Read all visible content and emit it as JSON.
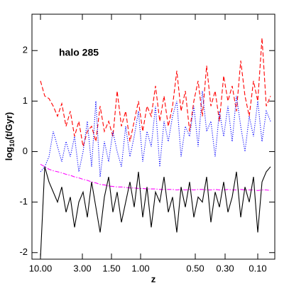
{
  "chart_data": {
    "type": "line",
    "annotation": "halo 285",
    "xlabel": "z",
    "ylabel": {
      "base": "log",
      "sub": "10",
      "rest": "(t/Gyr)"
    },
    "x": [
      6,
      9,
      12,
      15,
      18,
      21,
      24,
      27,
      30,
      33,
      36,
      39,
      42,
      45,
      48,
      51,
      54,
      57,
      60,
      63,
      66,
      69,
      72,
      75,
      78,
      81,
      84,
      87,
      90,
      93,
      96,
      99,
      102,
      105,
      108,
      111,
      114,
      117,
      120,
      123,
      126,
      129,
      132,
      135,
      138,
      141,
      144,
      147,
      150,
      153,
      156,
      159,
      162,
      165,
      168
    ],
    "series": [
      {
        "color": "#ff0000",
        "linestyle": "dashed",
        "values": [
          1.4,
          1.1,
          1.05,
          0.9,
          0.7,
          0.95,
          0.5,
          0.8,
          0.3,
          0.6,
          0.1,
          0.4,
          0.5,
          0.2,
          0.9,
          0.4,
          0.6,
          0.3,
          1.2,
          0.5,
          0.8,
          0.2,
          0.6,
          1.0,
          0.4,
          0.9,
          0.7,
          1.3,
          0.6,
          1.1,
          0.5,
          0.9,
          1.6,
          0.8,
          1.2,
          0.4,
          1.0,
          1.4,
          0.7,
          1.7,
          0.9,
          1.2,
          0.6,
          1.5,
          1.0,
          1.3,
          0.8,
          1.8,
          1.1,
          0.7,
          1.4,
          1.0,
          2.25,
          0.9,
          1.1
        ]
      },
      {
        "color": "#0000ff",
        "linestyle": "dotted",
        "values": [
          -0.4,
          -0.3,
          -0.1,
          0.4,
          0.1,
          -0.2,
          0.2,
          -0.1,
          0.3,
          -0.4,
          0.0,
          0.6,
          -0.3,
          1.0,
          -0.5,
          0.2,
          -0.2,
          0.4,
          0.0,
          -0.3,
          0.5,
          -0.1,
          0.3,
          0.8,
          -0.2,
          0.4,
          0.1,
          0.9,
          -0.3,
          0.6,
          0.2,
          0.7,
          1.0,
          -0.1,
          0.5,
          0.3,
          0.9,
          0.1,
          1.2,
          0.4,
          0.6,
          -0.1,
          0.8,
          0.3,
          0.9,
          0.2,
          1.1,
          0.5,
          0.0,
          0.7,
          0.3,
          1.0,
          0.2,
          0.8,
          0.6
        ]
      },
      {
        "color": "#ff00ff",
        "linestyle": "dashdot",
        "values": [
          -0.25,
          -0.3,
          -0.35,
          -0.38,
          -0.4,
          -0.42,
          -0.45,
          -0.47,
          -0.5,
          -0.52,
          -0.55,
          -0.57,
          -0.6,
          -0.62,
          -0.65,
          -0.66,
          -0.68,
          -0.69,
          -0.7,
          -0.7,
          -0.71,
          -0.72,
          -0.72,
          -0.73,
          -0.73,
          -0.74,
          -0.74,
          -0.74,
          -0.75,
          -0.75,
          -0.75,
          -0.75,
          -0.76,
          -0.75,
          -0.76,
          -0.75,
          -0.76,
          -0.75,
          -0.75,
          -0.76,
          -0.76,
          -0.75,
          -0.76,
          -0.76,
          -0.75,
          -0.76,
          -0.76,
          -0.75,
          -0.76,
          -0.76,
          -0.76,
          -0.77,
          -0.76,
          -0.76,
          -0.77
        ]
      },
      {
        "color": "#000000",
        "linestyle": "solid",
        "values": [
          -2.1,
          -0.3,
          -0.6,
          -0.8,
          -1.0,
          -0.7,
          -1.2,
          -0.9,
          -1.5,
          -1.0,
          -0.8,
          -1.3,
          -0.6,
          -1.1,
          -1.6,
          -0.9,
          -0.5,
          -1.2,
          -0.8,
          -1.4,
          -1.0,
          -0.6,
          -1.1,
          -0.4,
          -1.3,
          -0.7,
          -1.5,
          -0.8,
          -1.0,
          -0.5,
          -1.2,
          -0.9,
          -1.6,
          -0.7,
          -1.1,
          -0.6,
          -1.3,
          -0.9,
          -1.0,
          -0.5,
          -1.4,
          -0.8,
          -1.1,
          -0.6,
          -1.2,
          -0.9,
          -0.4,
          -1.3,
          -0.7,
          -1.0,
          -0.5,
          -1.6,
          -0.6,
          -0.4,
          -0.3
        ]
      }
    ],
    "xlim": [
      0,
      171
    ],
    "xticks": [
      {
        "value": 6,
        "label": "10.00"
      },
      {
        "value": 35.5,
        "label": "3.00"
      },
      {
        "value": 56,
        "label": "1.50"
      },
      {
        "value": 76.5,
        "label": "1.00"
      },
      {
        "value": 115,
        "label": "0.50"
      },
      {
        "value": 136,
        "label": "0.30"
      },
      {
        "value": 159,
        "label": "0.10"
      }
    ],
    "ylim": [
      -2.13,
      2.72
    ],
    "yticks": [
      -2,
      -1,
      0,
      1,
      2
    ]
  }
}
